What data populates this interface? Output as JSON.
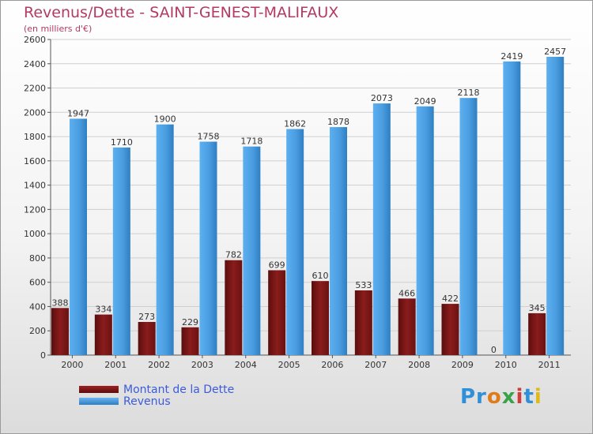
{
  "title": "Revenus/Dette - SAINT-GENEST-MALIFAUX",
  "subtitle": "(en milliers d'€)",
  "logo_text": "Proxiti",
  "colors": {
    "dette": "#7a1b1b",
    "revenus": "#4a9de0",
    "title": "#b23a63"
  },
  "chart_data": {
    "type": "bar",
    "categories": [
      "2000",
      "2001",
      "2002",
      "2003",
      "2004",
      "2005",
      "2006",
      "2007",
      "2008",
      "2009",
      "2010",
      "2011"
    ],
    "series": [
      {
        "name": "Montant de la Dette",
        "values": [
          388,
          334,
          273,
          229,
          782,
          699,
          610,
          533,
          466,
          422,
          0,
          345
        ]
      },
      {
        "name": "Revenus",
        "values": [
          1947,
          1710,
          1900,
          1758,
          1718,
          1862,
          1878,
          2073,
          2049,
          2118,
          2419,
          2457
        ]
      }
    ],
    "ylim": [
      0,
      2600
    ],
    "yticks": [
      0,
      200,
      400,
      600,
      800,
      1000,
      1200,
      1400,
      1600,
      1800,
      2000,
      2200,
      2400,
      2600
    ],
    "grid": true,
    "legend": "bottom-left"
  }
}
